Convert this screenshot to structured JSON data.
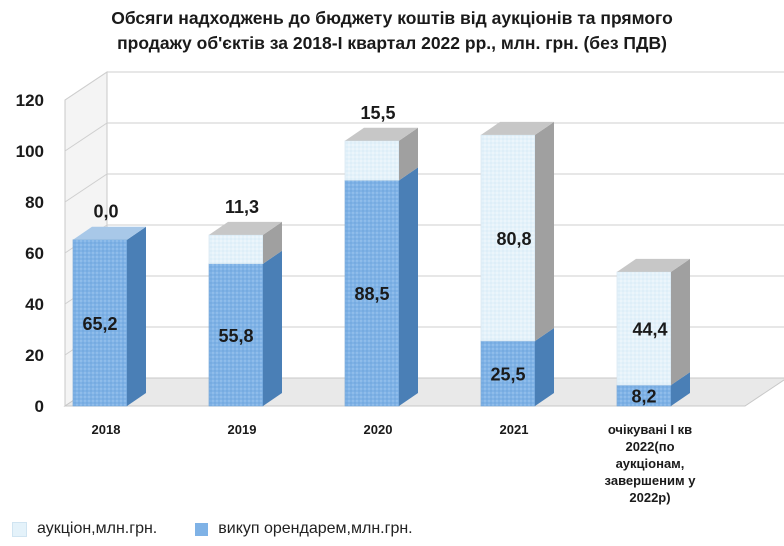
{
  "chart_data": {
    "type": "bar",
    "stacked": true,
    "three_d": true,
    "title": "Обсяги надходжень до бюджету коштів від аукціонів та прямого продажу об'єктів за 2018-І квартал 2022 рр., млн. грн. (без ПДВ)",
    "title_lines": [
      "Обсяги надходжень до бюджету коштів від аукціонів та прямого",
      "продажу об'єктів за 2018-І квартал 2022 рр., млн. грн. (без ПДВ)"
    ],
    "categories": [
      "2018",
      "2019",
      "2020",
      "2021",
      "очікувані І кв 2022(по аукціонам, завершеним у 2022р)"
    ],
    "category_label_lines": [
      [
        "2018"
      ],
      [
        "2019"
      ],
      [
        "2020"
      ],
      [
        "2021"
      ],
      [
        "очікувані І кв",
        "2022(по",
        "аукціонам,",
        "завершеним у",
        "2022р)"
      ]
    ],
    "series": [
      {
        "name": "викуп орендарем,млн.грн.",
        "values": [
          65.2,
          55.8,
          88.5,
          25.5,
          8.2
        ],
        "labels": [
          "65,2",
          "55,8",
          "88,5",
          "25,5",
          "8,2"
        ],
        "color": "#7fb2e6"
      },
      {
        "name": "аукціон,млн.грн.",
        "values": [
          0.0,
          11.3,
          15.5,
          80.8,
          44.4
        ],
        "labels": [
          "0,0",
          "11,3",
          "15,5",
          "80,8",
          "44,4"
        ],
        "color": "#e4f2fa"
      }
    ],
    "yticks": [
      0,
      20,
      40,
      60,
      80,
      100,
      120
    ],
    "ylim": [
      0,
      120
    ],
    "grid": true,
    "legend_position": "bottom-left"
  }
}
